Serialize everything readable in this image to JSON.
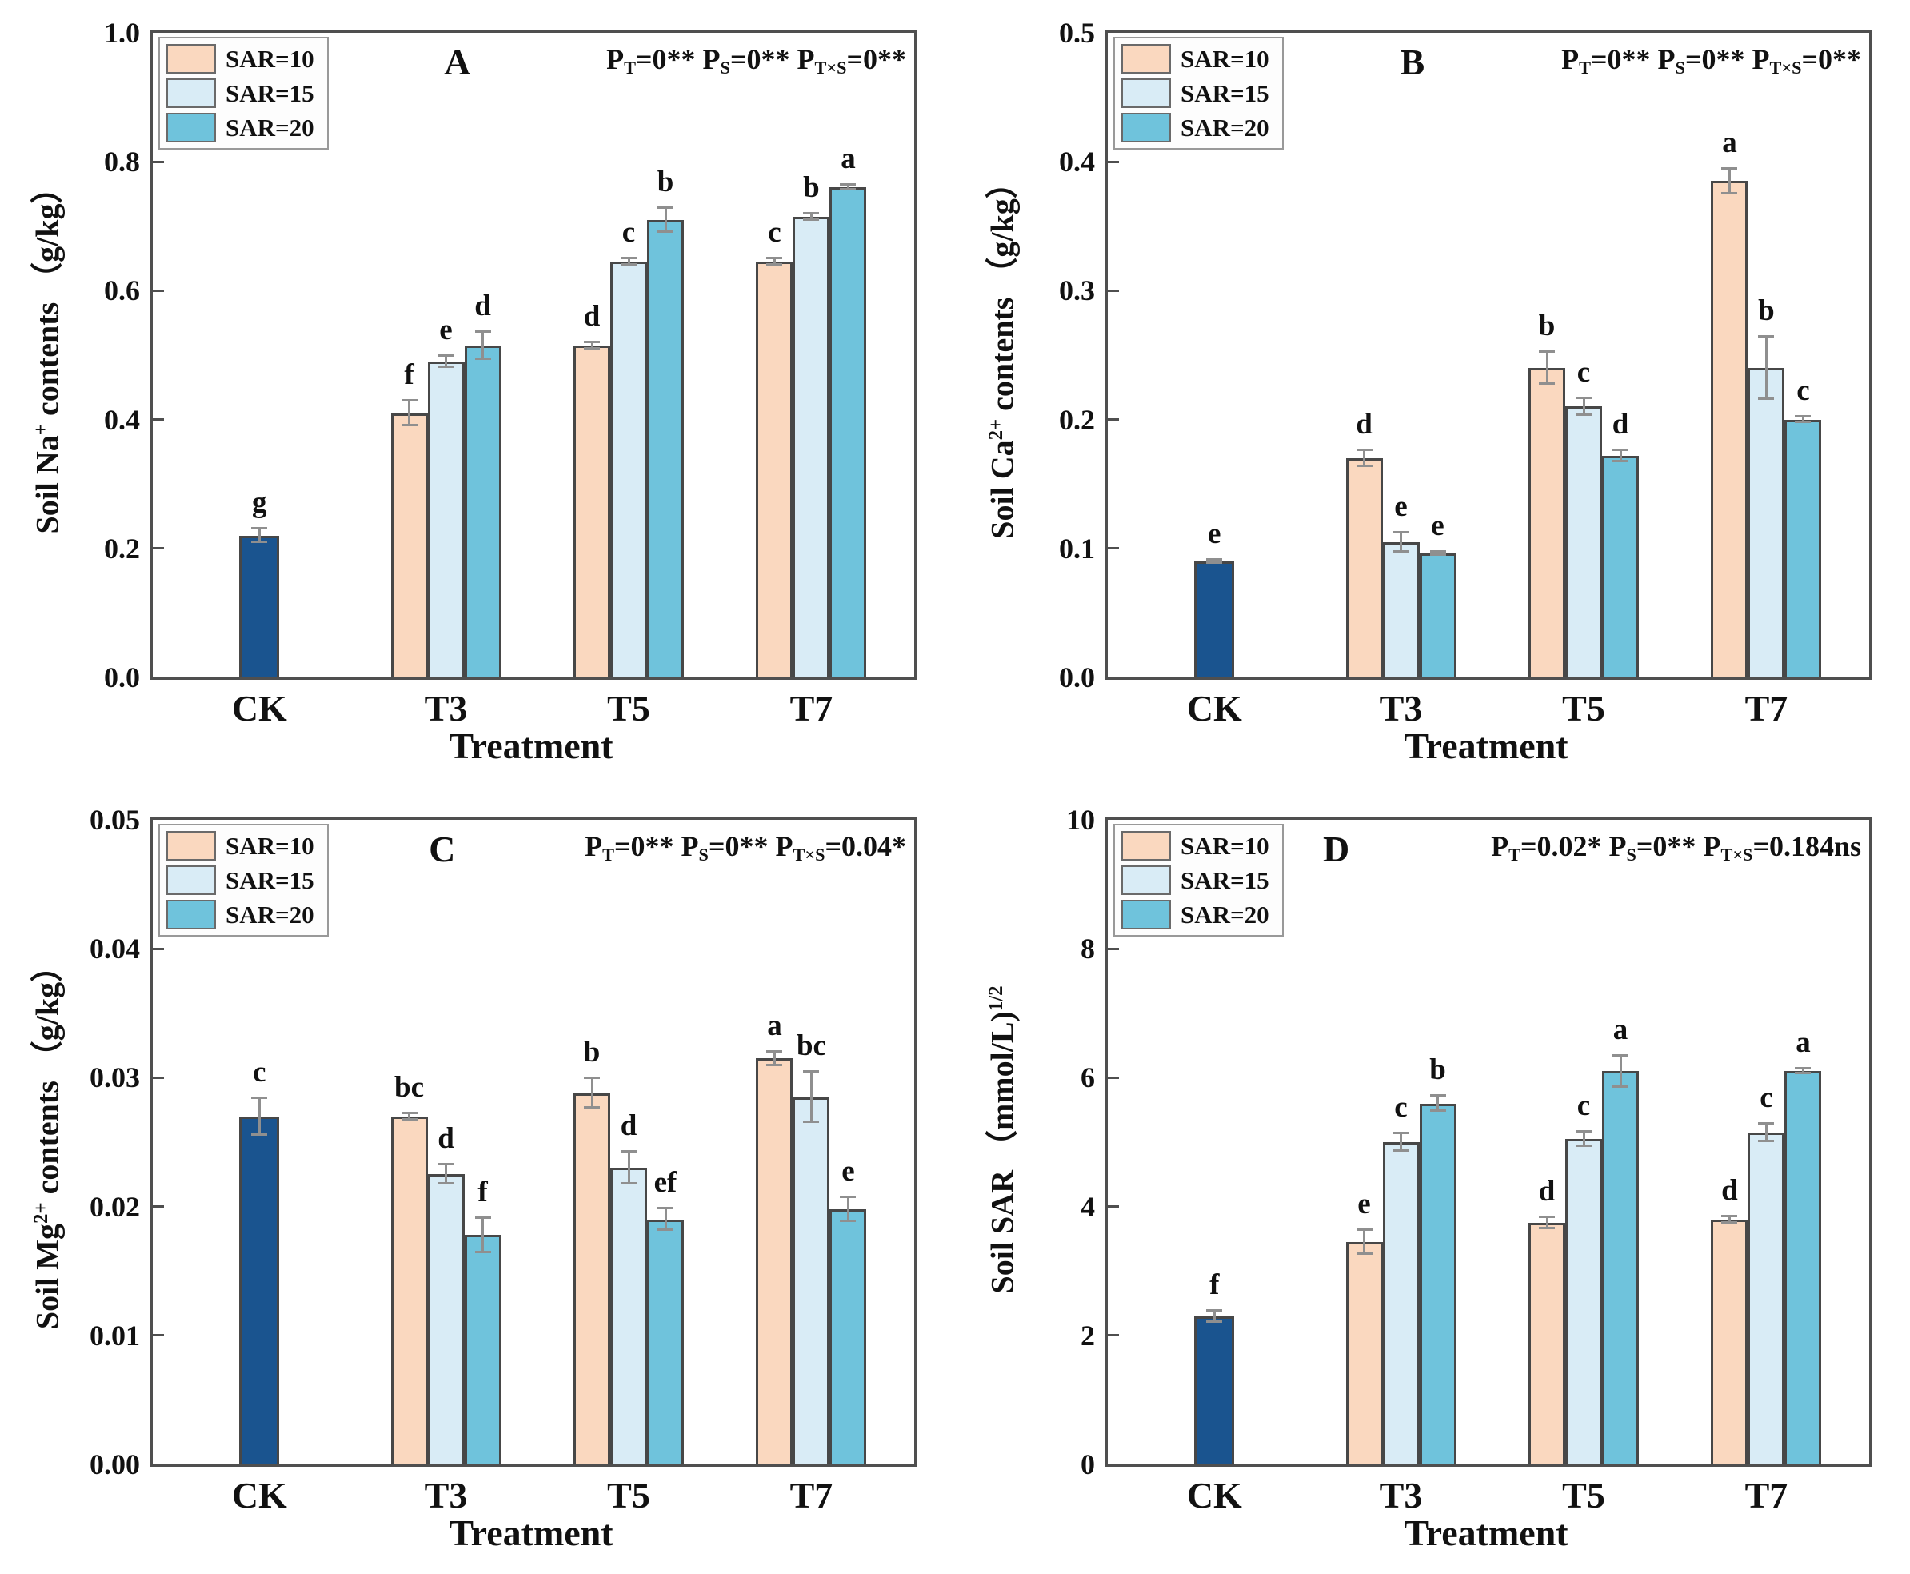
{
  "legend": {
    "items": [
      {
        "label": "SAR=10",
        "color": "#FAD8BF"
      },
      {
        "label": "SAR=15",
        "color": "#D9ECF6"
      },
      {
        "label": "SAR=20",
        "color": "#6FC3DC"
      }
    ]
  },
  "colors": {
    "CK": "#1A548F",
    "SAR=10": "#FAD8BF",
    "SAR=15": "#D9ECF6",
    "SAR=20": "#6FC3DC",
    "bar_border": "#474747",
    "error_bar": "#8f8f8f",
    "plot_border": "#4f4f4f"
  },
  "chart_data": [
    {
      "type": "bar",
      "panel": "A",
      "ylabel": "Soil Na+ contents （g/kg）",
      "ylabel_tokens": [
        {
          "t": "Soil Na"
        },
        {
          "sup": "+"
        },
        {
          "t": " contents （g/kg）"
        }
      ],
      "xlabel": "Treatment",
      "ylim": [
        0,
        1.0
      ],
      "yticks": [
        "1.0",
        "0.8",
        "0.6",
        "0.4",
        "0.2",
        "0.0"
      ],
      "grid": false,
      "legend_position": "top-left",
      "stats_text": "PT=0** PS=0** PT×S=0**",
      "stats_tokens": [
        {
          "t": "P"
        },
        {
          "sub": "T"
        },
        {
          "t": "=0** P"
        },
        {
          "sub": "S"
        },
        {
          "t": "=0** P"
        },
        {
          "sub": "T×S"
        },
        {
          "t": "=0**"
        }
      ],
      "categories": [
        "CK",
        "T3",
        "T5",
        "T7"
      ],
      "series": [
        "SAR=10",
        "SAR=15",
        "SAR=20"
      ],
      "groups": [
        {
          "category": "CK",
          "bars": [
            {
              "series": "CK",
              "value": 0.22,
              "error": 0.012,
              "letter": "g"
            }
          ]
        },
        {
          "category": "T3",
          "bars": [
            {
              "series": "SAR=10",
              "value": 0.41,
              "error": 0.02,
              "letter": "f"
            },
            {
              "series": "SAR=15",
              "value": 0.49,
              "error": 0.01,
              "letter": "e"
            },
            {
              "series": "SAR=20",
              "value": 0.515,
              "error": 0.022,
              "letter": "d"
            }
          ]
        },
        {
          "category": "T5",
          "bars": [
            {
              "series": "SAR=10",
              "value": 0.515,
              "error": 0.006,
              "letter": "d"
            },
            {
              "series": "SAR=15",
              "value": 0.645,
              "error": 0.006,
              "letter": "c"
            },
            {
              "series": "SAR=20",
              "value": 0.71,
              "error": 0.02,
              "letter": "b"
            }
          ]
        },
        {
          "category": "T7",
          "bars": [
            {
              "series": "SAR=10",
              "value": 0.645,
              "error": 0.006,
              "letter": "c"
            },
            {
              "series": "SAR=15",
              "value": 0.715,
              "error": 0.006,
              "letter": "b"
            },
            {
              "series": "SAR=20",
              "value": 0.76,
              "error": 0.005,
              "letter": "a"
            }
          ]
        }
      ]
    },
    {
      "type": "bar",
      "panel": "B",
      "ylabel": "Soil Ca2+ contents （g/kg）",
      "ylabel_tokens": [
        {
          "t": "Soil Ca"
        },
        {
          "sup": "2+"
        },
        {
          "t": " contents （g/kg）"
        }
      ],
      "xlabel": "Treatment",
      "ylim": [
        0,
        0.5
      ],
      "yticks": [
        "0.5",
        "0.4",
        "0.3",
        "0.2",
        "0.1",
        "0.0"
      ],
      "grid": false,
      "legend_position": "top-left",
      "stats_text": "PT=0** PS=0** PT×S=0**",
      "stats_tokens": [
        {
          "t": "P"
        },
        {
          "sub": "T"
        },
        {
          "t": "=0** P"
        },
        {
          "sub": "S"
        },
        {
          "t": "=0** P"
        },
        {
          "sub": "T×S"
        },
        {
          "t": "=0**"
        }
      ],
      "categories": [
        "CK",
        "T3",
        "T5",
        "T7"
      ],
      "series": [
        "SAR=10",
        "SAR=15",
        "SAR=20"
      ],
      "groups": [
        {
          "category": "CK",
          "bars": [
            {
              "series": "CK",
              "value": 0.09,
              "error": 0.002,
              "letter": "e"
            }
          ]
        },
        {
          "category": "T3",
          "bars": [
            {
              "series": "SAR=10",
              "value": 0.17,
              "error": 0.007,
              "letter": "d"
            },
            {
              "series": "SAR=15",
              "value": 0.105,
              "error": 0.008,
              "letter": "e"
            },
            {
              "series": "SAR=20",
              "value": 0.096,
              "error": 0.002,
              "letter": "e"
            }
          ]
        },
        {
          "category": "T5",
          "bars": [
            {
              "series": "SAR=10",
              "value": 0.24,
              "error": 0.013,
              "letter": "b"
            },
            {
              "series": "SAR=15",
              "value": 0.21,
              "error": 0.007,
              "letter": "c"
            },
            {
              "series": "SAR=20",
              "value": 0.172,
              "error": 0.005,
              "letter": "d"
            }
          ]
        },
        {
          "category": "T7",
          "bars": [
            {
              "series": "SAR=10",
              "value": 0.385,
              "error": 0.01,
              "letter": "a"
            },
            {
              "series": "SAR=15",
              "value": 0.24,
              "error": 0.025,
              "letter": "b"
            },
            {
              "series": "SAR=20",
              "value": 0.2,
              "error": 0.003,
              "letter": "c"
            }
          ]
        }
      ]
    },
    {
      "type": "bar",
      "panel": "C",
      "ylabel": "Soil Mg2+ contents （g/kg）",
      "ylabel_tokens": [
        {
          "t": "Soil Mg"
        },
        {
          "sup": "2+"
        },
        {
          "t": " contents （g/kg）"
        }
      ],
      "xlabel": "Treatment",
      "ylim": [
        0,
        0.05
      ],
      "yticks": [
        "0.05",
        "0.04",
        "0.03",
        "0.02",
        "0.01",
        "0.00"
      ],
      "grid": false,
      "legend_position": "top-left",
      "stats_text": "PT=0** PS=0** PT×S=0.04*",
      "stats_tokens": [
        {
          "t": "P"
        },
        {
          "sub": "T"
        },
        {
          "t": "=0** P"
        },
        {
          "sub": "S"
        },
        {
          "t": "=0** P"
        },
        {
          "sub": "T×S"
        },
        {
          "t": "=0.04*"
        }
      ],
      "categories": [
        "CK",
        "T3",
        "T5",
        "T7"
      ],
      "series": [
        "SAR=10",
        "SAR=15",
        "SAR=20"
      ],
      "groups": [
        {
          "category": "CK",
          "bars": [
            {
              "series": "CK",
              "value": 0.027,
              "error": 0.0015,
              "letter": "c"
            }
          ]
        },
        {
          "category": "T3",
          "bars": [
            {
              "series": "SAR=10",
              "value": 0.027,
              "error": 0.0003,
              "letter": "bc"
            },
            {
              "series": "SAR=15",
              "value": 0.0225,
              "error": 0.0008,
              "letter": "d"
            },
            {
              "series": "SAR=20",
              "value": 0.0178,
              "error": 0.0014,
              "letter": "f"
            }
          ]
        },
        {
          "category": "T5",
          "bars": [
            {
              "series": "SAR=10",
              "value": 0.0288,
              "error": 0.0012,
              "letter": "b"
            },
            {
              "series": "SAR=15",
              "value": 0.023,
              "error": 0.0013,
              "letter": "d"
            },
            {
              "series": "SAR=20",
              "value": 0.019,
              "error": 0.0009,
              "letter": "ef"
            }
          ]
        },
        {
          "category": "T7",
          "bars": [
            {
              "series": "SAR=10",
              "value": 0.0315,
              "error": 0.0006,
              "letter": "a"
            },
            {
              "series": "SAR=15",
              "value": 0.0285,
              "error": 0.002,
              "letter": "bc"
            },
            {
              "series": "SAR=20",
              "value": 0.0198,
              "error": 0.001,
              "letter": "e"
            }
          ]
        }
      ]
    },
    {
      "type": "bar",
      "panel": "D",
      "ylabel": "Soil SAR （mmol/L)1/2",
      "ylabel_tokens": [
        {
          "t": "Soil SAR （mmol/L)"
        },
        {
          "sup": "1/2"
        }
      ],
      "xlabel": "Treatment",
      "ylim": [
        0,
        10
      ],
      "yticks": [
        "10",
        "8",
        "6",
        "4",
        "2",
        "0"
      ],
      "grid": false,
      "legend_position": "top-left",
      "stats_text": "PT=0.02* PS=0** PT×S=0.184ns",
      "stats_tokens": [
        {
          "t": "P"
        },
        {
          "sub": "T"
        },
        {
          "t": "=0.02* P"
        },
        {
          "sub": "S"
        },
        {
          "t": "=0** P"
        },
        {
          "sub": "T×S"
        },
        {
          "t": "=0.184ns"
        }
      ],
      "categories": [
        "CK",
        "T3",
        "T5",
        "T7"
      ],
      "series": [
        "SAR=10",
        "SAR=15",
        "SAR=20"
      ],
      "groups": [
        {
          "category": "CK",
          "bars": [
            {
              "series": "CK",
              "value": 2.3,
              "error": 0.1,
              "letter": "f"
            }
          ]
        },
        {
          "category": "T3",
          "bars": [
            {
              "series": "SAR=10",
              "value": 3.45,
              "error": 0.2,
              "letter": "e"
            },
            {
              "series": "SAR=15",
              "value": 5.0,
              "error": 0.15,
              "letter": "c"
            },
            {
              "series": "SAR=20",
              "value": 5.6,
              "error": 0.13,
              "letter": "b"
            }
          ]
        },
        {
          "category": "T5",
          "bars": [
            {
              "series": "SAR=10",
              "value": 3.75,
              "error": 0.1,
              "letter": "d"
            },
            {
              "series": "SAR=15",
              "value": 5.05,
              "error": 0.12,
              "letter": "c"
            },
            {
              "series": "SAR=20",
              "value": 6.1,
              "error": 0.25,
              "letter": "a"
            }
          ]
        },
        {
          "category": "T7",
          "bars": [
            {
              "series": "SAR=10",
              "value": 3.8,
              "error": 0.06,
              "letter": "d"
            },
            {
              "series": "SAR=15",
              "value": 5.15,
              "error": 0.15,
              "letter": "c"
            },
            {
              "series": "SAR=20",
              "value": 6.1,
              "error": 0.05,
              "letter": "a"
            }
          ]
        }
      ]
    }
  ]
}
